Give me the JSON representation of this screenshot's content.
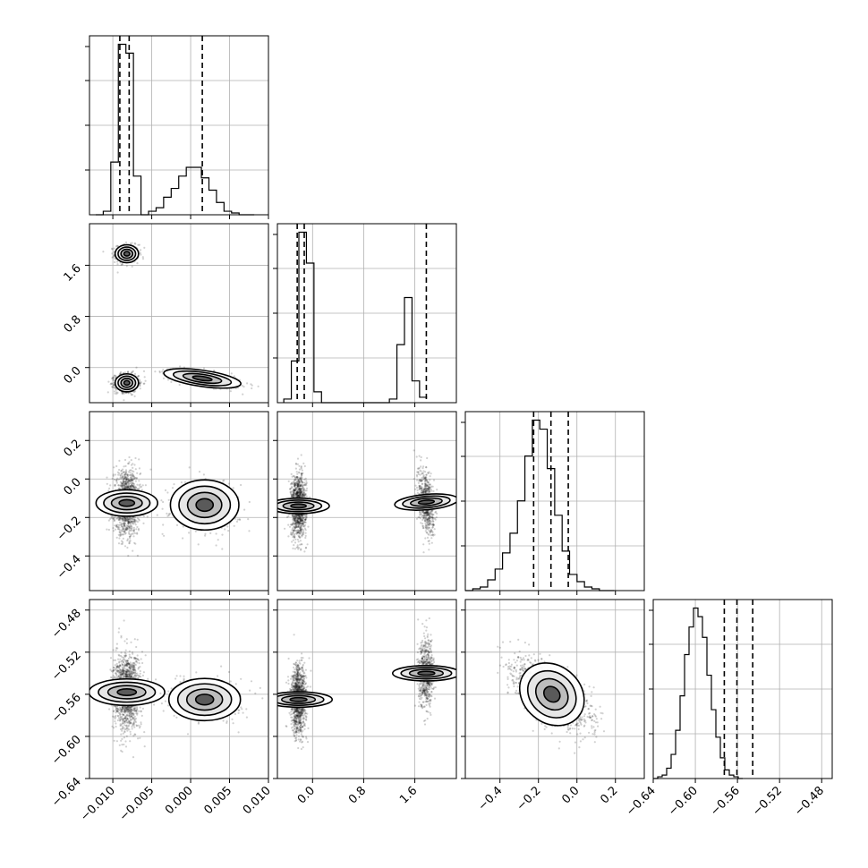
{
  "chart_data": {
    "type": "corner",
    "parameters": [
      {
        "range": [
          -0.013,
          0.01
        ],
        "ticks": [
          "−0.010",
          "−0.005",
          "0.000",
          "0.005",
          "0.010"
        ],
        "tick_values": [
          -0.01,
          -0.005,
          0.0,
          0.005,
          0.01
        ]
      },
      {
        "range": [
          -0.55,
          2.25
        ],
        "ticks": [
          "0.0",
          "0.8",
          "1.6"
        ],
        "tick_values": [
          0.0,
          0.8,
          1.6
        ]
      },
      {
        "range": [
          -0.58,
          0.35
        ],
        "ticks": [
          "−0.4",
          "−0.2",
          "0.0",
          "0.2"
        ],
        "tick_values": [
          -0.4,
          -0.2,
          0.0,
          0.2
        ]
      },
      {
        "range": [
          -0.64,
          -0.47
        ],
        "ticks": [
          "−0.64",
          "−0.60",
          "−0.56",
          "−0.52",
          "−0.48"
        ],
        "tick_values": [
          -0.64,
          -0.6,
          -0.56,
          -0.52,
          -0.48
        ]
      }
    ],
    "histograms": [
      {
        "parameter": 0,
        "bin_edges_start": -0.0122,
        "bin_width": 0.00097,
        "counts": [
          0,
          2,
          30,
          97,
          92,
          22,
          0,
          2,
          4,
          10,
          15,
          22,
          27,
          27,
          21,
          14,
          7,
          2,
          1,
          0,
          0
        ],
        "quantiles": [
          -0.0091,
          -0.0079,
          0.0015
        ]
      },
      {
        "parameter": 1,
        "bin_edges_start": -0.45,
        "bin_width": 0.118,
        "counts": [
          2,
          23,
          94,
          77,
          6,
          0,
          0,
          0,
          0,
          0,
          0,
          0,
          0,
          0,
          2,
          32,
          58,
          12,
          3
        ],
        "quantiles": [
          -0.24,
          -0.13,
          1.78
        ]
      },
      {
        "parameter": 2,
        "bin_edges_start": -0.58,
        "bin_width": 0.0387,
        "counts": [
          0,
          1,
          2,
          6,
          12,
          21,
          32,
          50,
          75,
          95,
          90,
          68,
          42,
          22,
          9,
          5,
          2,
          1,
          0,
          0
        ],
        "quantiles": [
          -0.225,
          -0.135,
          -0.045
        ]
      },
      {
        "parameter": 3,
        "bin_edges_start": -0.64,
        "bin_width": 0.00425,
        "counts": [
          0,
          1,
          2,
          6,
          14,
          28,
          48,
          72,
          88,
          99,
          94,
          82,
          60,
          40,
          24,
          12,
          5,
          2,
          1,
          0
        ],
        "quantiles": [
          -0.5725,
          -0.5605,
          -0.5455
        ]
      }
    ],
    "clusters_2d": [
      {
        "x": 1,
        "y": 0,
        "blobs": [
          {
            "cx": -0.0082,
            "cy": 1.78,
            "sx": 0.00075,
            "sy": 0.07,
            "rho": 0,
            "w": 0.32
          },
          {
            "cx": -0.0082,
            "cy": -0.24,
            "sx": 0.00075,
            "sy": 0.07,
            "rho": 0,
            "w": 0.47
          },
          {
            "cx": 0.0015,
            "cy": -0.17,
            "sx": 0.0025,
            "sy": 0.07,
            "rho": -0.6,
            "w": 0.21
          }
        ]
      },
      {
        "x": 2,
        "y": 0,
        "blobs": [
          {
            "cx": -0.0082,
            "cy": -0.125,
            "sx": 0.00085,
            "sy": 0.08,
            "rho": 0,
            "w": 0.79
          },
          {
            "cx": 0.0018,
            "cy": -0.135,
            "sx": 0.0022,
            "sy": 0.065,
            "rho": 0,
            "w": 0.21
          }
        ]
      },
      {
        "x": 2,
        "y": 1,
        "blobs": [
          {
            "cx": -0.22,
            "cy": -0.14,
            "sx": 0.06,
            "sy": 0.08,
            "rho": 0,
            "w": 0.65
          },
          {
            "cx": 1.78,
            "cy": -0.12,
            "sx": 0.06,
            "sy": 0.085,
            "rho": -0.35,
            "w": 0.35
          }
        ]
      },
      {
        "x": 3,
        "y": 0,
        "blobs": [
          {
            "cx": -0.0082,
            "cy": -0.558,
            "sx": 0.00085,
            "sy": 0.018,
            "rho": 0,
            "w": 0.79
          },
          {
            "cx": 0.0018,
            "cy": -0.565,
            "sx": 0.0023,
            "sy": 0.01,
            "rho": 0,
            "w": 0.21
          }
        ]
      },
      {
        "x": 3,
        "y": 1,
        "blobs": [
          {
            "cx": -0.22,
            "cy": -0.565,
            "sx": 0.06,
            "sy": 0.016,
            "rho": 0,
            "w": 0.65
          },
          {
            "cx": 1.78,
            "cy": -0.54,
            "sx": 0.06,
            "sy": 0.016,
            "rho": 0,
            "w": 0.35
          }
        ]
      },
      {
        "x": 3,
        "y": 2,
        "blobs": [
          {
            "cx": -0.13,
            "cy": -0.56,
            "sx": 0.09,
            "sy": 0.015,
            "rho": -0.6,
            "w": 1.0
          }
        ]
      }
    ]
  }
}
